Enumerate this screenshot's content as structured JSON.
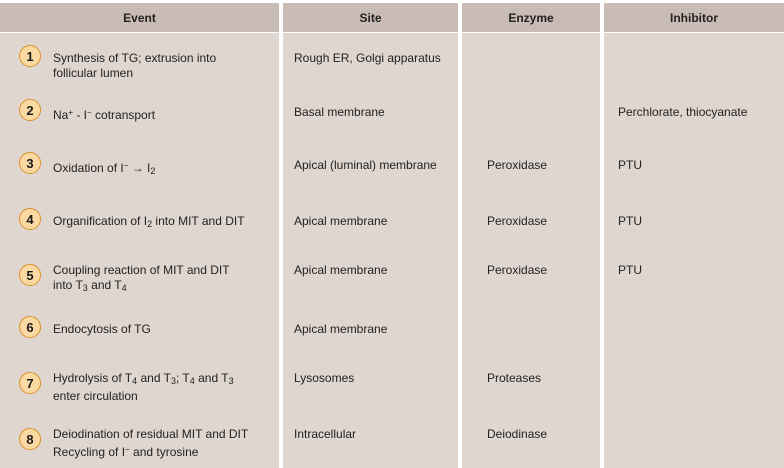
{
  "headers": {
    "event": "Event",
    "site": "Site",
    "enzyme": "Enzyme",
    "inhibitor": "Inhibitor"
  },
  "rows": [
    {
      "num": "1",
      "event": {
        "line1": "Synthesis of TG; extrusion into",
        "line2": "follicular lumen"
      },
      "site": "Rough ER, Golgi apparatus",
      "enzyme": "",
      "inhibitor": ""
    },
    {
      "num": "2",
      "event": {
        "a": "Na",
        "a_sup": "+",
        "b": " - I",
        "b_sup": "−",
        "c": " cotransport"
      },
      "site": "Basal membrane",
      "enzyme": "",
      "inhibitor": "Perchlorate, thiocyanate"
    },
    {
      "num": "3",
      "event": {
        "a": "Oxidation of I",
        "a_sup": "−",
        "b": " → I",
        "b_sub": "2"
      },
      "site": "Apical (luminal) membrane",
      "enzyme": "Peroxidase",
      "inhibitor": "PTU"
    },
    {
      "num": "4",
      "event": {
        "a": "Organification of I",
        "a_sub": "2",
        "b": " into MIT and DIT"
      },
      "site": "Apical membrane",
      "enzyme": "Peroxidase",
      "inhibitor": "PTU"
    },
    {
      "num": "5",
      "event": {
        "line1": "Coupling reaction of MIT and DIT",
        "a": "into T",
        "a_sub": "3",
        "b": " and T",
        "b_sub": "4"
      },
      "site": "Apical membrane",
      "enzyme": "Peroxidase",
      "inhibitor": "PTU"
    },
    {
      "num": "6",
      "event": {
        "line1": "Endocytosis of TG"
      },
      "site": "Apical membrane",
      "enzyme": "",
      "inhibitor": ""
    },
    {
      "num": "7",
      "event": {
        "a": "Hydrolysis of T",
        "a_sub": "4",
        "b": " and T",
        "b_sub": "3",
        "c": "; T",
        "c_sub": "4",
        "d": " and T",
        "d_sub": "3",
        "line2": "enter circulation"
      },
      "site": "Lysosomes",
      "enzyme": "Proteases",
      "inhibitor": ""
    },
    {
      "num": "8",
      "event": {
        "line1": "Deiodination of residual MIT and DIT",
        "a": "Recycling of I",
        "a_sup": "−",
        "b": " and tyrosine"
      },
      "site": "Intracellular",
      "enzyme": "Deiodinase",
      "inhibitor": ""
    }
  ]
}
